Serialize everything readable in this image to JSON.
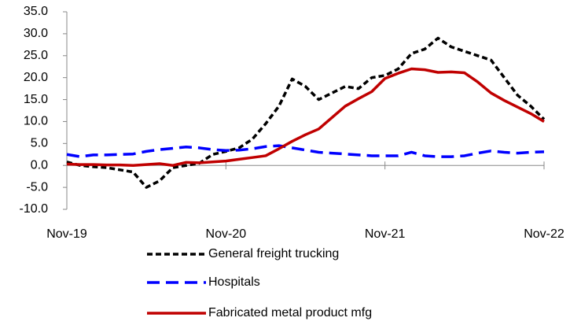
{
  "chart_data": {
    "type": "line",
    "categories": [
      "Nov-19",
      null,
      null,
      null,
      null,
      null,
      null,
      null,
      null,
      null,
      null,
      null,
      "Nov-20",
      null,
      null,
      null,
      null,
      null,
      null,
      null,
      null,
      null,
      null,
      null,
      "Nov-21",
      null,
      null,
      null,
      null,
      null,
      null,
      null,
      null,
      null,
      null,
      null,
      "Nov-22"
    ],
    "series": [
      {
        "name": "General freight trucking",
        "color": "#000000",
        "line_style": "dash",
        "values": [
          0.8,
          0,
          -0.3,
          -0.5,
          -1,
          -1.5,
          -5,
          -3.5,
          -0.5,
          0,
          0.5,
          2.5,
          3.2,
          4,
          6,
          9.5,
          13.5,
          19.7,
          18,
          15,
          16.5,
          18,
          17.5,
          20,
          20.5,
          22,
          25.5,
          26.5,
          29,
          27,
          26,
          25,
          24,
          20,
          16,
          13.5,
          10.5
        ]
      },
      {
        "name": "Hospitals",
        "color": "#0000ff",
        "line_style": "long-dash",
        "values": [
          2.5,
          2,
          2.4,
          2.4,
          2.5,
          2.6,
          3.2,
          3.6,
          3.9,
          4.2,
          4,
          3.6,
          3.4,
          3.5,
          3.8,
          4.3,
          4.5,
          4,
          3.5,
          3,
          2.8,
          2.6,
          2.4,
          2.2,
          2.2,
          2.2,
          3,
          2.2,
          2,
          2,
          2.2,
          2.8,
          3.3,
          3,
          2.8,
          3,
          3.1
        ]
      },
      {
        "name": "Fabricated metal product mfg",
        "color": "#c00000",
        "line_style": "solid",
        "values": [
          0.3,
          0.2,
          0.2,
          0.1,
          0.1,
          0,
          0.2,
          0.4,
          0,
          0.7,
          0.6,
          0.8,
          1,
          1.4,
          1.8,
          2.2,
          3.8,
          5.5,
          7,
          8.3,
          10.9,
          13.5,
          15.2,
          16.8,
          19.8,
          21,
          22,
          21.8,
          21.2,
          21.3,
          21.1,
          19,
          16.5,
          14.8,
          13.3,
          11.8,
          10
        ]
      }
    ],
    "ylim": [
      -10,
      35
    ],
    "yticks": [
      {
        "value": -10,
        "label": "-10.0"
      },
      {
        "value": -5,
        "label": "-5.0"
      },
      {
        "value": 0,
        "label": "0.0"
      },
      {
        "value": 5,
        "label": "5.0"
      },
      {
        "value": 10,
        "label": "10.0"
      },
      {
        "value": 15,
        "label": "15.0"
      },
      {
        "value": 20,
        "label": "20.0"
      },
      {
        "value": 25,
        "label": "25.0"
      },
      {
        "value": 30,
        "label": "30.0"
      },
      {
        "value": 35,
        "label": "35.0"
      }
    ]
  }
}
